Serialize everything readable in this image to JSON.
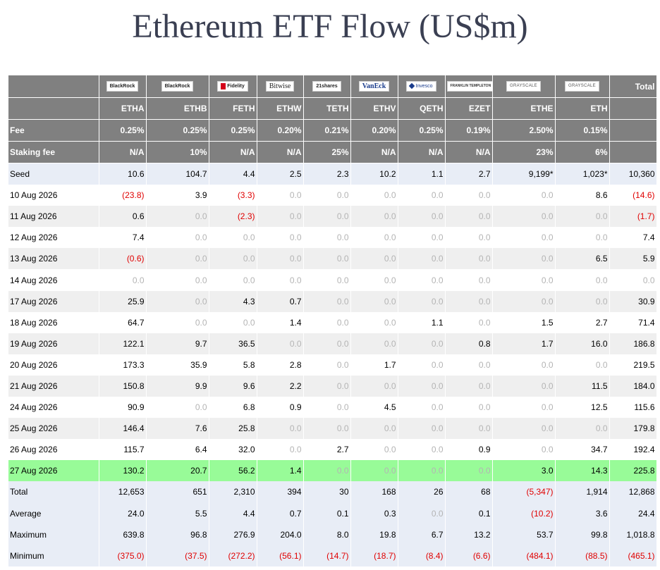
{
  "title": "Ethereum ETF Flow (US$m)",
  "colors": {
    "header_bg": "#808080",
    "negative": "#e00000",
    "zero": "#b4b4b4",
    "highlight": "#98fb98",
    "summary_bg": "#e8edf6"
  },
  "logos": [
    {
      "icon": "blackrock-logo",
      "text": "BlackRock"
    },
    {
      "icon": "blackrock-logo",
      "text": "BlackRock"
    },
    {
      "icon": "fidelity-logo",
      "text": "Fidelity"
    },
    {
      "icon": "bitwise-logo",
      "text": "Bitwise"
    },
    {
      "icon": "21shares-logo",
      "text": "21shares"
    },
    {
      "icon": "vaneck-logo",
      "text": "VanEck"
    },
    {
      "icon": "invesco-logo",
      "text": "Invesco"
    },
    {
      "icon": "franklin-logo",
      "text": "FRANKLIN TEMPLETON"
    },
    {
      "icon": "grayscale-logo",
      "text": "GRAYSCALE"
    },
    {
      "icon": "grayscale-logo",
      "text": "GRAYSCALE"
    }
  ],
  "total_header": "Total",
  "tickers": [
    "ETHA",
    "ETHB",
    "FETH",
    "ETHW",
    "TETH",
    "ETHV",
    "QETH",
    "EZET",
    "ETHE",
    "ETH"
  ],
  "fee_row": {
    "label": "Fee",
    "values": [
      "0.25%",
      "0.25%",
      "0.25%",
      "0.20%",
      "0.21%",
      "0.20%",
      "0.25%",
      "0.19%",
      "2.50%",
      "0.15%"
    ]
  },
  "staking_row": {
    "label": "Staking fee",
    "values": [
      "N/A",
      "10%",
      "N/A",
      "N/A",
      "25%",
      "N/A",
      "N/A",
      "N/A",
      "23%",
      "6%"
    ]
  },
  "rows": [
    {
      "label": "Seed",
      "style": "seed",
      "values": [
        "10.6",
        "104.7",
        "4.4",
        "2.5",
        "2.3",
        "10.2",
        "1.1",
        "2.7",
        "9,199*",
        "1,023*",
        "10,360"
      ]
    },
    {
      "label": "10 Aug 2026",
      "style": "white",
      "values": [
        "(23.8)",
        "3.9",
        "(3.3)",
        "0.0",
        "0.0",
        "0.0",
        "0.0",
        "0.0",
        "0.0",
        "8.6",
        "(14.6)"
      ]
    },
    {
      "label": "11 Aug 2026",
      "style": "grey",
      "values": [
        "0.6",
        "0.0",
        "(2.3)",
        "0.0",
        "0.0",
        "0.0",
        "0.0",
        "0.0",
        "0.0",
        "0.0",
        "(1.7)"
      ]
    },
    {
      "label": "12 Aug 2026",
      "style": "white",
      "values": [
        "7.4",
        "0.0",
        "0.0",
        "0.0",
        "0.0",
        "0.0",
        "0.0",
        "0.0",
        "0.0",
        "0.0",
        "7.4"
      ]
    },
    {
      "label": "13 Aug 2026",
      "style": "grey",
      "values": [
        "(0.6)",
        "0.0",
        "0.0",
        "0.0",
        "0.0",
        "0.0",
        "0.0",
        "0.0",
        "0.0",
        "6.5",
        "5.9"
      ]
    },
    {
      "label": "14 Aug 2026",
      "style": "white",
      "values": [
        "0.0",
        "0.0",
        "0.0",
        "0.0",
        "0.0",
        "0.0",
        "0.0",
        "0.0",
        "0.0",
        "0.0",
        "0.0"
      ]
    },
    {
      "label": "17 Aug 2026",
      "style": "grey",
      "values": [
        "25.9",
        "0.0",
        "4.3",
        "0.7",
        "0.0",
        "0.0",
        "0.0",
        "0.0",
        "0.0",
        "0.0",
        "30.9"
      ]
    },
    {
      "label": "18 Aug 2026",
      "style": "white",
      "values": [
        "64.7",
        "0.0",
        "0.0",
        "1.4",
        "0.0",
        "0.0",
        "1.1",
        "0.0",
        "1.5",
        "2.7",
        "71.4"
      ]
    },
    {
      "label": "19 Aug 2026",
      "style": "grey",
      "values": [
        "122.1",
        "9.7",
        "36.5",
        "0.0",
        "0.0",
        "0.0",
        "0.0",
        "0.8",
        "1.7",
        "16.0",
        "186.8"
      ]
    },
    {
      "label": "20 Aug 2026",
      "style": "white",
      "values": [
        "173.3",
        "35.9",
        "5.8",
        "2.8",
        "0.0",
        "1.7",
        "0.0",
        "0.0",
        "0.0",
        "0.0",
        "219.5"
      ]
    },
    {
      "label": "21 Aug 2026",
      "style": "grey",
      "values": [
        "150.8",
        "9.9",
        "9.6",
        "2.2",
        "0.0",
        "0.0",
        "0.0",
        "0.0",
        "0.0",
        "11.5",
        "184.0"
      ]
    },
    {
      "label": "24 Aug 2026",
      "style": "white",
      "values": [
        "90.9",
        "0.0",
        "6.8",
        "0.9",
        "0.0",
        "4.5",
        "0.0",
        "0.0",
        "0.0",
        "12.5",
        "115.6"
      ]
    },
    {
      "label": "25 Aug 2026",
      "style": "grey",
      "values": [
        "146.4",
        "7.6",
        "25.8",
        "0.0",
        "0.0",
        "0.0",
        "0.0",
        "0.0",
        "0.0",
        "0.0",
        "179.8"
      ]
    },
    {
      "label": "26 Aug 2026",
      "style": "white",
      "values": [
        "115.7",
        "6.4",
        "32.0",
        "0.0",
        "2.7",
        "0.0",
        "0.0",
        "0.9",
        "0.0",
        "34.7",
        "192.4"
      ]
    },
    {
      "label": "27 Aug 2026",
      "style": "green",
      "values": [
        "130.2",
        "20.7",
        "56.2",
        "1.4",
        "0.0",
        "0.0",
        "0.0",
        "0.0",
        "3.0",
        "14.3",
        "225.8"
      ]
    },
    {
      "label": "Total",
      "style": "summary",
      "values": [
        "12,653",
        "651",
        "2,310",
        "394",
        "30",
        "168",
        "26",
        "68",
        "(5,347)",
        "1,914",
        "12,868"
      ]
    },
    {
      "label": "Average",
      "style": "summary",
      "values": [
        "24.0",
        "5.5",
        "4.4",
        "0.7",
        "0.1",
        "0.3",
        "0.0",
        "0.1",
        "(10.2)",
        "3.6",
        "24.4"
      ]
    },
    {
      "label": "Maximum",
      "style": "summary",
      "values": [
        "639.8",
        "96.8",
        "276.9",
        "204.0",
        "8.0",
        "19.8",
        "6.7",
        "13.2",
        "53.7",
        "99.8",
        "1,018.8"
      ]
    },
    {
      "label": "Minimum",
      "style": "summary",
      "values": [
        "(375.0)",
        "(37.5)",
        "(272.2)",
        "(56.1)",
        "(14.7)",
        "(18.7)",
        "(8.4)",
        "(6.6)",
        "(484.1)",
        "(88.5)",
        "(465.1)"
      ]
    }
  ]
}
